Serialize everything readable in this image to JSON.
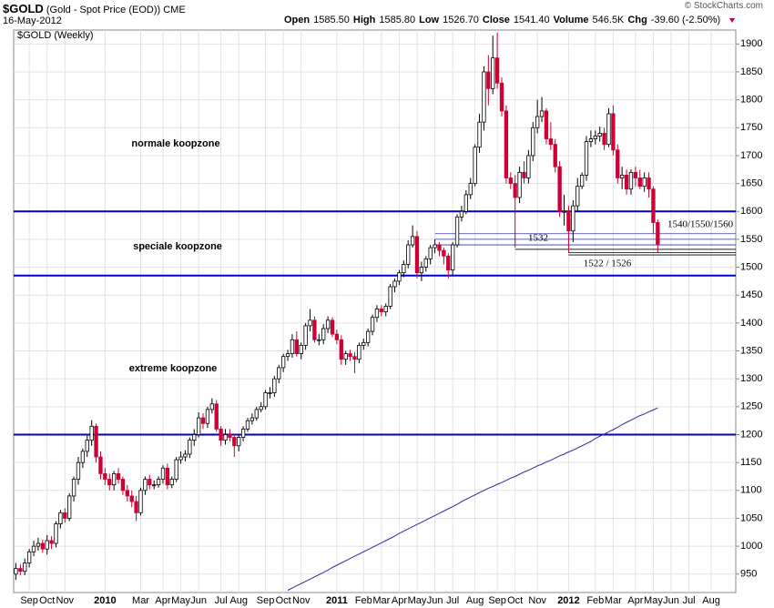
{
  "header": {
    "symbol": "$GOLD",
    "description": "(Gold - Spot Price (EOD))",
    "exchange": "CME",
    "date": "16-May-2012",
    "credit": "© StockCharts.com",
    "quote": [
      {
        "label": "Open",
        "value": "1585.50"
      },
      {
        "label": "High",
        "value": "1585.80"
      },
      {
        "label": "Low",
        "value": "1526.70"
      },
      {
        "label": "Close",
        "value": "1541.40"
      },
      {
        "label": "Volume",
        "value": "546.5K"
      },
      {
        "label": "Chg",
        "value": "-39.60 (-2.50%)"
      }
    ]
  },
  "chart_data": {
    "type": "candlestick",
    "chart_label": "$GOLD (Weekly)",
    "categories": [
      null,
      null,
      null,
      "Sep",
      null,
      null,
      null,
      "Oct",
      null,
      null,
      null,
      "Nov",
      null,
      null,
      null,
      null,
      null,
      null,
      null,
      null,
      "2010",
      null,
      null,
      null,
      null,
      null,
      null,
      null,
      "Mar",
      null,
      null,
      null,
      null,
      "Apr",
      null,
      null,
      null,
      "May",
      null,
      null,
      null,
      "Jun",
      null,
      null,
      null,
      null,
      "Jul",
      null,
      null,
      null,
      "Aug",
      null,
      null,
      null,
      null,
      null,
      "Sep",
      null,
      null,
      null,
      "Oct",
      null,
      null,
      null,
      "Nov",
      null,
      null,
      null,
      null,
      null,
      null,
      null,
      "2011",
      null,
      null,
      null,
      null,
      null,
      "Feb",
      null,
      null,
      null,
      "Mar",
      null,
      null,
      null,
      "Apr",
      null,
      null,
      null,
      "May",
      null,
      null,
      null,
      "Jun",
      null,
      null,
      null,
      "Jul",
      null,
      null,
      null,
      null,
      "Aug",
      null,
      null,
      null,
      null,
      "Sep",
      null,
      null,
      null,
      "Oct",
      null,
      null,
      null,
      null,
      "Nov",
      null,
      null,
      null,
      null,
      null,
      null,
      "2012",
      null,
      null,
      null,
      null,
      null,
      "Feb",
      null,
      null,
      null,
      "Mar",
      null,
      null,
      null,
      null,
      "Apr",
      null,
      null,
      null,
      "May",
      null,
      null,
      null,
      "Jun",
      null,
      null,
      null,
      "Jul",
      null,
      null,
      null,
      null,
      "Aug",
      null,
      null,
      null,
      null,
      null
    ],
    "open": [
      950,
      960,
      955,
      970,
      990,
      1000,
      1005,
      995,
      1010,
      1005,
      1040,
      1060,
      1050,
      1090,
      1120,
      1150,
      1170,
      1190,
      1215,
      1160,
      1130,
      1120,
      1110,
      1130,
      1120,
      1100,
      1090,
      1080,
      1060,
      1100,
      1120,
      1110,
      1110,
      1120,
      1140,
      1110,
      1120,
      1155,
      1160,
      1165,
      1190,
      1200,
      1230,
      1220,
      1245,
      1255,
      1210,
      1190,
      1200,
      1195,
      1180,
      1195,
      1210,
      1225,
      1230,
      1245,
      1250,
      1275,
      1275,
      1300,
      1320,
      1340,
      1345,
      1370,
      1345,
      1360,
      1395,
      1405,
      1370,
      1370,
      1390,
      1405,
      1380,
      1370,
      1335,
      1345,
      1340,
      1335,
      1360,
      1365,
      1385,
      1410,
      1425,
      1420,
      1430,
      1465,
      1475,
      1490,
      1505,
      1540,
      1555,
      1490,
      1500,
      1515,
      1535,
      1540,
      1530,
      1520,
      1495,
      1540,
      1590,
      1600,
      1630,
      1650,
      1715,
      1760,
      1850,
      1820,
      1875,
      1830,
      1780,
      1660,
      1650,
      1625,
      1670,
      1660,
      1700,
      1750,
      1770,
      1780,
      1730,
      1720,
      1680,
      1600,
      1600,
      1565,
      1610,
      1645,
      1665,
      1725,
      1730,
      1735,
      1740,
      1720,
      1775,
      1710,
      1660,
      1665,
      1640,
      1670,
      1660,
      1645,
      1660,
      1640,
      1580,
      null,
      null,
      null,
      null,
      null,
      null,
      null,
      null,
      null,
      null,
      null,
      null,
      null,
      null,
      null,
      null,
      null
    ],
    "high": [
      970,
      968,
      978,
      995,
      1010,
      1015,
      1012,
      1020,
      1018,
      1045,
      1065,
      1068,
      1095,
      1125,
      1160,
      1175,
      1198,
      1226,
      1220,
      1170,
      1140,
      1130,
      1135,
      1140,
      1125,
      1110,
      1100,
      1090,
      1105,
      1125,
      1128,
      1118,
      1125,
      1145,
      1148,
      1125,
      1160,
      1170,
      1172,
      1195,
      1210,
      1240,
      1238,
      1250,
      1265,
      1262,
      1215,
      1210,
      1210,
      1202,
      1200,
      1215,
      1230,
      1238,
      1250,
      1258,
      1280,
      1285,
      1305,
      1325,
      1345,
      1352,
      1380,
      1385,
      1365,
      1400,
      1425,
      1412,
      1380,
      1398,
      1412,
      1410,
      1388,
      1378,
      1350,
      1352,
      1348,
      1365,
      1372,
      1390,
      1415,
      1432,
      1432,
      1435,
      1470,
      1480,
      1495,
      1512,
      1548,
      1575,
      1565,
      1510,
      1520,
      1540,
      1550,
      1545,
      1535,
      1525,
      1545,
      1595,
      1610,
      1638,
      1660,
      1720,
      1775,
      1860,
      1880,
      1915,
      1920,
      1840,
      1790,
      1670,
      1665,
      1680,
      1690,
      1710,
      1760,
      1800,
      1805,
      1785,
      1760,
      1730,
      1690,
      1630,
      1610,
      1620,
      1660,
      1670,
      1735,
      1745,
      1745,
      1752,
      1750,
      1785,
      1790,
      1720,
      1680,
      1675,
      1675,
      1680,
      1675,
      1670,
      1670,
      1645,
      1585.8,
      null,
      null,
      null,
      null,
      null,
      null,
      null,
      null,
      null,
      null,
      null,
      null,
      null,
      null,
      null,
      null,
      null
    ],
    "low": [
      940,
      948,
      948,
      962,
      982,
      992,
      988,
      985,
      995,
      998,
      1032,
      1042,
      1045,
      1080,
      1110,
      1140,
      1160,
      1180,
      1150,
      1120,
      1110,
      1100,
      1100,
      1112,
      1092,
      1080,
      1070,
      1045,
      1055,
      1092,
      1102,
      1102,
      1105,
      1112,
      1102,
      1104,
      1115,
      1148,
      1152,
      1158,
      1180,
      1195,
      1210,
      1212,
      1238,
      1205,
      1180,
      1182,
      1188,
      1160,
      1170,
      1188,
      1205,
      1218,
      1225,
      1240,
      1245,
      1265,
      1268,
      1292,
      1312,
      1332,
      1338,
      1340,
      1335,
      1352,
      1385,
      1365,
      1360,
      1362,
      1382,
      1375,
      1362,
      1325,
      1325,
      1332,
      1310,
      1328,
      1352,
      1358,
      1378,
      1402,
      1412,
      1412,
      1425,
      1455,
      1468,
      1482,
      1498,
      1535,
      1480,
      1475,
      1492,
      1505,
      1525,
      1520,
      1505,
      1480,
      1485,
      1535,
      1582,
      1595,
      1622,
      1645,
      1705,
      1745,
      1790,
      1810,
      1820,
      1770,
      1650,
      1640,
      1535,
      1615,
      1650,
      1650,
      1690,
      1740,
      1760,
      1720,
      1710,
      1670,
      1590,
      1575,
      1525,
      1545,
      1600,
      1640,
      1655,
      1715,
      1720,
      1725,
      1710,
      1715,
      1700,
      1650,
      1640,
      1630,
      1630,
      1645,
      1640,
      1635,
      1625,
      1560,
      1526.7,
      null,
      null,
      null,
      null,
      null,
      null,
      null,
      null,
      null,
      null,
      null,
      null,
      null,
      null,
      null,
      null,
      null
    ],
    "close": [
      960,
      955,
      970,
      990,
      1000,
      1005,
      995,
      1010,
      1005,
      1040,
      1060,
      1050,
      1090,
      1120,
      1150,
      1170,
      1190,
      1215,
      1160,
      1130,
      1120,
      1110,
      1130,
      1120,
      1100,
      1090,
      1080,
      1060,
      1100,
      1120,
      1110,
      1110,
      1120,
      1140,
      1110,
      1120,
      1155,
      1160,
      1165,
      1190,
      1200,
      1230,
      1220,
      1245,
      1255,
      1210,
      1190,
      1200,
      1195,
      1180,
      1195,
      1210,
      1225,
      1230,
      1245,
      1250,
      1275,
      1275,
      1300,
      1320,
      1340,
      1345,
      1370,
      1345,
      1360,
      1395,
      1405,
      1370,
      1370,
      1390,
      1405,
      1380,
      1370,
      1335,
      1345,
      1340,
      1335,
      1360,
      1365,
      1385,
      1410,
      1425,
      1420,
      1430,
      1465,
      1475,
      1490,
      1505,
      1540,
      1555,
      1490,
      1500,
      1515,
      1535,
      1540,
      1530,
      1520,
      1495,
      1540,
      1590,
      1600,
      1630,
      1650,
      1715,
      1760,
      1850,
      1820,
      1875,
      1830,
      1780,
      1660,
      1650,
      1625,
      1670,
      1660,
      1700,
      1750,
      1770,
      1780,
      1730,
      1720,
      1680,
      1600,
      1600,
      1565,
      1610,
      1645,
      1665,
      1725,
      1730,
      1735,
      1740,
      1720,
      1775,
      1710,
      1660,
      1665,
      1640,
      1670,
      1660,
      1645,
      1660,
      1640,
      1580,
      1541.4,
      null,
      null,
      null,
      null,
      null,
      null,
      null,
      null,
      null,
      null,
      null,
      null,
      null,
      null,
      null,
      null,
      null
    ],
    "up_color": "#ffffff",
    "down_color": "#cc0033",
    "moving_average": {
      "color": "#2a2aa0",
      "values": [
        null,
        null,
        null,
        null,
        null,
        null,
        null,
        null,
        null,
        null,
        null,
        null,
        null,
        null,
        null,
        null,
        null,
        null,
        null,
        null,
        null,
        null,
        null,
        null,
        null,
        null,
        null,
        null,
        null,
        null,
        null,
        null,
        null,
        null,
        null,
        null,
        null,
        null,
        null,
        null,
        null,
        null,
        null,
        null,
        null,
        null,
        null,
        null,
        null,
        null,
        null,
        null,
        null,
        null,
        null,
        null,
        null,
        null,
        null,
        null,
        null,
        921,
        925,
        929,
        933,
        937,
        941,
        945,
        949,
        953,
        957,
        962,
        966,
        970,
        974,
        978,
        982,
        986,
        990,
        994,
        998,
        1002,
        1006,
        1010,
        1014,
        1018,
        1023,
        1027,
        1031,
        1035,
        1039,
        1043,
        1047,
        1051,
        1055,
        1059,
        1063,
        1067,
        1071,
        1075,
        1080,
        1084,
        1088,
        1092,
        1096,
        1100,
        1104,
        1107,
        1111,
        1114,
        1118,
        1122,
        1125,
        1129,
        1133,
        1136,
        1140,
        1144,
        1147,
        1151,
        1154,
        1158,
        1162,
        1165,
        1169,
        1172,
        1176,
        1180,
        1184,
        1188,
        1193,
        1197,
        1201,
        1205,
        1209,
        1213,
        1218,
        1222,
        1226,
        1230,
        1234,
        1237,
        1241,
        1244,
        1248,
        null,
        null,
        null,
        null,
        null,
        null,
        null,
        null,
        null,
        null,
        null,
        null,
        null,
        null,
        null,
        null,
        null
      ]
    },
    "levels": [
      {
        "value": 1600,
        "color": "#0000cc"
      },
      {
        "value": 1485,
        "color": "#0000cc"
      },
      {
        "value": 1200,
        "color": "#0000cc"
      },
      {
        "value": 1560,
        "color": "#3333aa"
      },
      {
        "value": 1550,
        "color": "#3333aa"
      },
      {
        "value": 1540,
        "color": "#3333aa"
      },
      {
        "value": 1532,
        "color": "#000000"
      },
      {
        "value": 1526,
        "color": "#000000"
      },
      {
        "value": 1522,
        "color": "#000000"
      }
    ],
    "annotations": [
      "normale koopzone",
      "speciale koopzone",
      "extreme koopzone",
      "1540/1550/1560",
      "1532",
      "1522 / 1526"
    ],
    "ylim": [
      917,
      1925
    ],
    "yticks": [
      950,
      1000,
      1050,
      1100,
      1150,
      1200,
      1250,
      1300,
      1350,
      1400,
      1450,
      1500,
      1550,
      1600,
      1650,
      1700,
      1750,
      1800,
      1850,
      1900
    ],
    "grid": true
  }
}
